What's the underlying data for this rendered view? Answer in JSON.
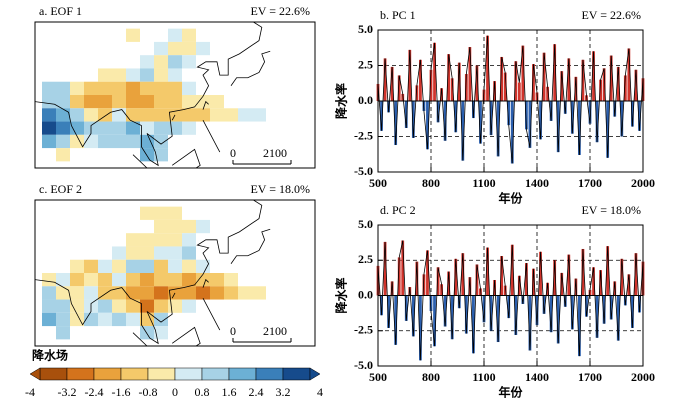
{
  "chart_data": [
    {
      "type": "map",
      "title": "a.  EOF 1",
      "annotation": "EV = 22.6%",
      "scale_labels": [
        "0",
        "2100"
      ],
      "cells": [
        [
          95,
          50,
          -0.4
        ],
        [
          110,
          50,
          0.6
        ],
        [
          115,
          50,
          -0.4
        ],
        [
          105,
          45,
          0.6
        ],
        [
          110,
          45,
          -0.5
        ],
        [
          115,
          45,
          -0.5
        ],
        [
          120,
          45,
          0.6
        ],
        [
          100,
          40,
          0.5
        ],
        [
          105,
          40,
          -0.6
        ],
        [
          110,
          40,
          0.9
        ],
        [
          115,
          40,
          0.5
        ],
        [
          85,
          35,
          -0.5
        ],
        [
          90,
          35,
          -0.6
        ],
        [
          95,
          35,
          0.6
        ],
        [
          100,
          35,
          0.9
        ],
        [
          105,
          35,
          -0.8
        ],
        [
          110,
          35,
          0.5
        ],
        [
          65,
          30,
          0.9
        ],
        [
          70,
          30,
          1.2
        ],
        [
          75,
          30,
          -0.8
        ],
        [
          80,
          30,
          -1.2
        ],
        [
          85,
          30,
          -1.6
        ],
        [
          90,
          30,
          -1.4
        ],
        [
          95,
          30,
          -1.8
        ],
        [
          100,
          30,
          -1.2
        ],
        [
          105,
          30,
          -0.9
        ],
        [
          110,
          30,
          -1.4
        ],
        [
          115,
          30,
          0.6
        ],
        [
          65,
          25,
          1.5
        ],
        [
          70,
          25,
          0.8
        ],
        [
          75,
          25,
          -1.0
        ],
        [
          80,
          25,
          -1.8
        ],
        [
          85,
          25,
          -2.2
        ],
        [
          90,
          25,
          -1.6
        ],
        [
          95,
          25,
          -2.0
        ],
        [
          100,
          25,
          -1.9
        ],
        [
          105,
          25,
          -1.6
        ],
        [
          110,
          25,
          -1.2
        ],
        [
          115,
          25,
          -0.5
        ],
        [
          120,
          25,
          -0.6
        ],
        [
          125,
          25,
          -0.4
        ],
        [
          65,
          20,
          2.6
        ],
        [
          70,
          20,
          1.8
        ],
        [
          75,
          20,
          1.2
        ],
        [
          80,
          20,
          -0.5
        ],
        [
          85,
          20,
          -0.9
        ],
        [
          90,
          20,
          0.6
        ],
        [
          95,
          20,
          -1.0
        ],
        [
          100,
          20,
          -1.3
        ],
        [
          105,
          20,
          -1.5
        ],
        [
          110,
          20,
          -0.9
        ],
        [
          115,
          20,
          -1.3
        ],
        [
          120,
          20,
          -1.0
        ],
        [
          125,
          20,
          -0.7
        ],
        [
          130,
          20,
          -0.5
        ],
        [
          135,
          20,
          0.6
        ],
        [
          140,
          20,
          0.6
        ],
        [
          65,
          15,
          3.2
        ],
        [
          70,
          15,
          2.4
        ],
        [
          75,
          15,
          1.6
        ],
        [
          80,
          15,
          0.9
        ],
        [
          85,
          15,
          1.4
        ],
        [
          90,
          15,
          1.0
        ],
        [
          95,
          15,
          1.8
        ],
        [
          100,
          15,
          0.6
        ],
        [
          105,
          15,
          1.2
        ],
        [
          110,
          15,
          0.9
        ],
        [
          115,
          15,
          0.7
        ],
        [
          65,
          10,
          2.0
        ],
        [
          70,
          10,
          1.2
        ],
        [
          75,
          10,
          -0.6
        ],
        [
          80,
          10,
          0.7
        ],
        [
          85,
          10,
          1.3
        ],
        [
          90,
          10,
          0.8
        ],
        [
          95,
          10,
          1.5
        ],
        [
          100,
          10,
          2.2
        ],
        [
          105,
          10,
          1.0
        ],
        [
          70,
          5,
          -0.7
        ],
        [
          100,
          5,
          1.7
        ],
        [
          105,
          5,
          0.9
        ]
      ]
    },
    {
      "type": "line",
      "title": "b.  PC 1",
      "annotation": "EV = 22.6%",
      "xlabel": "年份",
      "ylabel": "降水率",
      "xlim": [
        500,
        2000
      ],
      "xticks": [
        500,
        800,
        1100,
        1400,
        1700,
        2000
      ],
      "ylim": [
        -5,
        5
      ],
      "yticks": [
        {
          "value": 5,
          "label": "5.0"
        },
        {
          "value": 2.5,
          "label": "2.5"
        },
        {
          "value": 0,
          "label": "0.0"
        },
        {
          "value": -2.5,
          "label": "-2.5"
        },
        {
          "value": -5,
          "label": "-5.0"
        }
      ],
      "grid": true,
      "line_color": "#000000",
      "pos_color": "#d0342c",
      "neg_color": "#2b5fae",
      "x": [
        500,
        520,
        540,
        560,
        580,
        600,
        620,
        640,
        660,
        680,
        700,
        720,
        740,
        760,
        780,
        800,
        820,
        840,
        860,
        880,
        900,
        920,
        940,
        960,
        980,
        1000,
        1020,
        1040,
        1060,
        1080,
        1100,
        1120,
        1140,
        1160,
        1180,
        1200,
        1220,
        1240,
        1260,
        1280,
        1300,
        1320,
        1340,
        1360,
        1380,
        1400,
        1420,
        1440,
        1460,
        1480,
        1500,
        1520,
        1540,
        1560,
        1580,
        1600,
        1620,
        1640,
        1660,
        1680,
        1700,
        1720,
        1740,
        1760,
        1780,
        1800,
        1820,
        1840,
        1860,
        1880,
        1900,
        1920,
        1940,
        1960,
        1980,
        2000
      ],
      "values": [
        1.2,
        -2.1,
        3.0,
        -0.8,
        2.4,
        -3.1,
        1.8,
        0.5,
        -1.9,
        3.6,
        -2.6,
        1.1,
        2.9,
        -0.7,
        -3.4,
        2.2,
        4.1,
        -1.5,
        0.9,
        -2.8,
        3.3,
        1.6,
        -2.2,
        2.7,
        -4.2,
        1.9,
        3.8,
        -1.2,
        2.5,
        -3.0,
        0.8,
        4.6,
        -2.4,
        1.4,
        -3.9,
        3.1,
        2.0,
        -1.7,
        -4.4,
        2.8,
        1.3,
        3.9,
        -2.0,
        -3.3,
        2.6,
        0.6,
        -2.7,
        3.4,
        1.0,
        -1.4,
        4.0,
        -3.6,
        2.1,
        -0.9,
        3.0,
        -2.3,
        1.7,
        -3.8,
        2.9,
        0.4,
        -1.6,
        3.5,
        -2.9,
        1.5,
        2.3,
        -4.0,
        3.2,
        -1.1,
        2.4,
        -2.5,
        1.8,
        3.7,
        -1.8,
        2.2,
        -2.1,
        1.6
      ]
    },
    {
      "type": "map",
      "title": "c.  EOF 2",
      "annotation": "EV = 18.0%",
      "scale_labels": [
        "0",
        "2100"
      ],
      "cells": [
        [
          100,
          50,
          -0.4
        ],
        [
          105,
          50,
          -0.5
        ],
        [
          110,
          50,
          -0.5
        ],
        [
          105,
          45,
          -0.6
        ],
        [
          110,
          45,
          -0.5
        ],
        [
          115,
          45,
          -0.4
        ],
        [
          120,
          45,
          0.5
        ],
        [
          95,
          40,
          -0.5
        ],
        [
          100,
          40,
          -0.5
        ],
        [
          105,
          40,
          -0.6
        ],
        [
          110,
          40,
          -0.4
        ],
        [
          115,
          40,
          0.6
        ],
        [
          90,
          35,
          0.6
        ],
        [
          95,
          35,
          -0.7
        ],
        [
          100,
          35,
          -0.5
        ],
        [
          105,
          35,
          0.7
        ],
        [
          110,
          35,
          0.6
        ],
        [
          115,
          35,
          0.8
        ],
        [
          75,
          30,
          -0.6
        ],
        [
          80,
          30,
          -0.9
        ],
        [
          85,
          30,
          0.5
        ],
        [
          90,
          30,
          -0.8
        ],
        [
          95,
          30,
          0.8
        ],
        [
          100,
          30,
          1.0
        ],
        [
          105,
          30,
          -1.2
        ],
        [
          110,
          30,
          0.7
        ],
        [
          115,
          30,
          -0.6
        ],
        [
          120,
          30,
          0.5
        ],
        [
          65,
          25,
          -0.8
        ],
        [
          70,
          25,
          0.7
        ],
        [
          75,
          25,
          -1.0
        ],
        [
          80,
          25,
          -0.6
        ],
        [
          85,
          25,
          -1.5
        ],
        [
          90,
          25,
          0.7
        ],
        [
          95,
          25,
          -0.9
        ],
        [
          100,
          25,
          -2.0
        ],
        [
          105,
          25,
          -1.6
        ],
        [
          110,
          25,
          -1.3
        ],
        [
          115,
          25,
          -2.2
        ],
        [
          120,
          25,
          -1.4
        ],
        [
          125,
          25,
          -0.9
        ],
        [
          130,
          25,
          -0.6
        ],
        [
          65,
          20,
          0.9
        ],
        [
          70,
          20,
          -0.7
        ],
        [
          75,
          20,
          -0.8
        ],
        [
          80,
          20,
          0.6
        ],
        [
          85,
          20,
          -1.0
        ],
        [
          90,
          20,
          -1.3
        ],
        [
          95,
          20,
          -2.4
        ],
        [
          100,
          20,
          -1.7
        ],
        [
          105,
          20,
          -2.6
        ],
        [
          110,
          20,
          -1.9
        ],
        [
          115,
          20,
          -2.0
        ],
        [
          120,
          20,
          -2.6
        ],
        [
          125,
          20,
          -1.7
        ],
        [
          130,
          20,
          -1.2
        ],
        [
          135,
          20,
          -0.7
        ],
        [
          140,
          20,
          -0.6
        ],
        [
          65,
          15,
          1.4
        ],
        [
          70,
          15,
          0.8
        ],
        [
          75,
          15,
          -0.6
        ],
        [
          80,
          15,
          0.7
        ],
        [
          85,
          15,
          1.0
        ],
        [
          90,
          15,
          -0.7
        ],
        [
          95,
          15,
          -1.6
        ],
        [
          100,
          15,
          -2.8
        ],
        [
          105,
          15,
          -1.4
        ],
        [
          110,
          15,
          -0.8
        ],
        [
          115,
          15,
          0.6
        ],
        [
          65,
          10,
          2.1
        ],
        [
          70,
          10,
          1.2
        ],
        [
          75,
          10,
          -0.5
        ],
        [
          80,
          10,
          0.9
        ],
        [
          85,
          10,
          0.6
        ],
        [
          90,
          10,
          1.1
        ],
        [
          95,
          10,
          0.7
        ],
        [
          100,
          10,
          -1.2
        ],
        [
          105,
          10,
          0.8
        ],
        [
          70,
          5,
          1.3
        ],
        [
          100,
          5,
          0.9
        ],
        [
          105,
          5,
          0.6
        ]
      ]
    },
    {
      "type": "line",
      "title": "d.  PC 2",
      "annotation": "EV = 18.0%",
      "xlabel": "年份",
      "ylabel": "降水率",
      "xlim": [
        500,
        2000
      ],
      "xticks": [
        500,
        800,
        1100,
        1400,
        1700,
        2000
      ],
      "ylim": [
        -5,
        5
      ],
      "yticks": [
        {
          "value": 5,
          "label": "5.0"
        },
        {
          "value": 2.5,
          "label": "2.5"
        },
        {
          "value": 0,
          "label": "0.0"
        },
        {
          "value": -2.5,
          "label": "-2.5"
        },
        {
          "value": -5,
          "label": "-5.0"
        }
      ],
      "grid": true,
      "line_color": "#000000",
      "pos_color": "#d0342c",
      "neg_color": "#2b5fae",
      "x": [
        500,
        520,
        540,
        560,
        580,
        600,
        620,
        640,
        660,
        680,
        700,
        720,
        740,
        760,
        780,
        800,
        820,
        840,
        860,
        880,
        900,
        920,
        940,
        960,
        980,
        1000,
        1020,
        1040,
        1060,
        1080,
        1100,
        1120,
        1140,
        1160,
        1180,
        1200,
        1220,
        1240,
        1260,
        1280,
        1300,
        1320,
        1340,
        1360,
        1380,
        1400,
        1420,
        1440,
        1460,
        1480,
        1500,
        1520,
        1540,
        1560,
        1580,
        1600,
        1620,
        1640,
        1660,
        1680,
        1700,
        1720,
        1740,
        1760,
        1780,
        1800,
        1820,
        1840,
        1860,
        1880,
        1900,
        1920,
        1940,
        1960,
        1980,
        2000
      ],
      "values": [
        2.1,
        -1.4,
        3.8,
        -2.3,
        1.0,
        -3.5,
        2.7,
        3.9,
        -1.8,
        0.6,
        -2.9,
        2.4,
        -4.6,
        1.5,
        3.2,
        -1.1,
        -3.6,
        2.0,
        0.8,
        -2.2,
        1.7,
        -3.1,
        2.6,
        -0.9,
        3.0,
        -2.7,
        1.3,
        -4.1,
        2.2,
        0.5,
        -1.9,
        3.4,
        -2.5,
        1.1,
        -3.3,
        2.8,
        0.7,
        -1.6,
        3.6,
        -2.8,
        1.4,
        -0.6,
        2.3,
        -3.9,
        1.9,
        -2.1,
        3.1,
        -1.3,
        0.9,
        -2.6,
        2.5,
        -3.4,
        1.6,
        -0.8,
        2.9,
        -2.4,
        1.2,
        -4.3,
        3.3,
        -1.5,
        0.4,
        2.0,
        -3.0,
        1.8,
        -2.0,
        3.5,
        -1.7,
        1.0,
        -3.2,
        2.6,
        -0.7,
        1.5,
        -2.3,
        3.0,
        -1.2,
        2.4
      ]
    },
    {
      "type": "colorbar",
      "title": "降水场",
      "ticks": [
        -4,
        -3.2,
        -2.4,
        -1.6,
        -0.8,
        0,
        0.8,
        1.6,
        2.4,
        3.2,
        4
      ],
      "colors": [
        "#a8500c",
        "#d4731c",
        "#e9a23c",
        "#f4c96a",
        "#faeaaa",
        "#d4ebf3",
        "#a7d2e6",
        "#6cb0d5",
        "#3a7fb9",
        "#164b8c"
      ]
    }
  ]
}
